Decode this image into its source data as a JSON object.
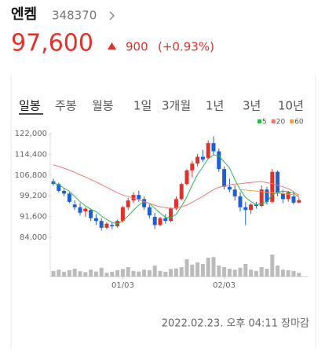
{
  "header": {
    "name": "엔켐",
    "code": "348370",
    "price": "97,600",
    "change": "900",
    "change_pct": "(+0.93%)"
  },
  "tabs": [
    "일봉",
    "주봉",
    "월봉",
    "1일",
    "3개월",
    "1년",
    "3년",
    "10년"
  ],
  "footer": "2022.02.23. 오후 04:11 장마감",
  "chart_data": {
    "type": "candlestick",
    "categories": [
      null,
      null,
      null,
      null,
      null,
      null,
      null,
      null,
      null,
      null,
      null,
      null,
      null,
      "01/03",
      null,
      null,
      null,
      null,
      null,
      null,
      null,
      null,
      null,
      null,
      null,
      null,
      null,
      null,
      null,
      null,
      null,
      null,
      "02/03",
      null,
      null,
      null,
      null,
      null,
      null,
      null,
      null,
      null,
      null,
      null,
      null,
      null,
      null
    ],
    "open": [
      104500,
      103500,
      101000,
      100000,
      96000,
      95000,
      93500,
      94000,
      91000,
      90000,
      87500,
      88500,
      88000,
      90000,
      95000,
      97500,
      99500,
      98000,
      95000,
      91500,
      88500,
      91000,
      90000,
      94500,
      98000,
      103500,
      108500,
      111000,
      113500,
      113000,
      118500,
      115500,
      109000,
      102500,
      101500,
      99000,
      95000,
      94000,
      96000,
      95500,
      101500,
      97000,
      108000,
      100000,
      98000,
      99000,
      96700
    ],
    "high": [
      105500,
      104000,
      102000,
      100500,
      97500,
      96500,
      95000,
      94500,
      92500,
      91000,
      89500,
      89500,
      90500,
      95500,
      98500,
      100500,
      101000,
      99000,
      96000,
      93000,
      91500,
      92500,
      95000,
      99000,
      104000,
      109000,
      112000,
      114500,
      116000,
      119500,
      121000,
      116500,
      110000,
      105500,
      103000,
      100500,
      97000,
      96500,
      97000,
      103000,
      102500,
      109000,
      108500,
      101500,
      101000,
      100500,
      98500
    ],
    "low": [
      103000,
      100500,
      99000,
      96500,
      94000,
      92000,
      91500,
      90000,
      88500,
      86500,
      87000,
      87000,
      87500,
      89500,
      94000,
      96500,
      97000,
      94000,
      91000,
      87000,
      88000,
      89000,
      89500,
      94000,
      97500,
      103000,
      106000,
      110000,
      111500,
      112500,
      114000,
      108000,
      101500,
      100500,
      97500,
      93500,
      88500,
      92500,
      94500,
      95000,
      96000,
      96500,
      99000,
      96500,
      97000,
      96000,
      96500
    ],
    "close": [
      103500,
      101000,
      100000,
      97000,
      95000,
      93000,
      94500,
      91000,
      90000,
      87500,
      89000,
      88000,
      90000,
      95000,
      97500,
      99500,
      98000,
      95000,
      92000,
      88500,
      91000,
      90000,
      94500,
      98000,
      103500,
      108500,
      111000,
      113500,
      112500,
      118500,
      115500,
      109000,
      102500,
      101500,
      99000,
      95000,
      94000,
      96000,
      95500,
      101500,
      97000,
      108000,
      100000,
      98000,
      100500,
      96700,
      97600
    ],
    "up_color": "#e0322c",
    "down_color": "#1f5fd1",
    "series": [
      {
        "name": "5",
        "color": "#2db84d",
        "values": [
          104000,
          103200,
          102000,
          100800,
          99000,
          97000,
          95500,
          94300,
          93400,
          91800,
          90500,
          89500,
          88900,
          89900,
          91800,
          93900,
          95800,
          97000,
          96400,
          94600,
          92900,
          91300,
          91200,
          92400,
          95400,
          98800,
          103100,
          107000,
          109800,
          112800,
          114200,
          113800,
          111600,
          109400,
          105100,
          101400,
          98600,
          97100,
          95900,
          96400,
          96800,
          99600,
          100400,
          100900,
          100700,
          100200,
          98600
        ]
      },
      {
        "name": "20",
        "color": "#f07878",
        "values": [
          110500,
          110000,
          109300,
          108600,
          107800,
          106900,
          106100,
          105200,
          104300,
          103300,
          102300,
          101300,
          100300,
          99500,
          98900,
          98300,
          97800,
          97100,
          96400,
          95700,
          95200,
          94900,
          94600,
          94700,
          95100,
          95800,
          96800,
          97900,
          99000,
          100300,
          101500,
          102300,
          102700,
          103200,
          103500,
          103600,
          103900,
          104100,
          104300,
          104400,
          104000,
          103700,
          103100,
          102500,
          101800,
          100700,
          99500
        ]
      },
      {
        "name": "60",
        "color": "#f5a03c",
        "values": [
          null,
          null,
          null,
          null,
          null,
          null,
          null,
          null,
          null,
          null,
          null,
          null,
          null,
          null,
          null,
          null,
          null,
          null,
          null,
          null,
          null,
          null,
          null,
          null,
          null,
          null,
          null,
          null,
          null,
          null,
          null,
          null,
          null,
          null,
          null,
          101500,
          101300,
          101100,
          100900,
          100700,
          100500,
          100400,
          100200,
          100000,
          99800,
          99600,
          99400
        ]
      }
    ],
    "volume": [
      18,
      22,
      15,
      20,
      25,
      17,
      14,
      22,
      16,
      28,
      12,
      15,
      20,
      24,
      30,
      18,
      16,
      22,
      20,
      35,
      18,
      15,
      24,
      26,
      30,
      55,
      38,
      45,
      40,
      60,
      62,
      35,
      30,
      25,
      22,
      28,
      40,
      22,
      18,
      30,
      25,
      70,
      35,
      22,
      20,
      18,
      12
    ],
    "volume_ylim": [
      0,
      100
    ],
    "ylim": [
      84000,
      122000
    ],
    "yticks": [
      {
        "value": 84000,
        "label": "84,000"
      },
      {
        "value": 91600,
        "label": "91,600"
      },
      {
        "value": 99200,
        "label": "99,200"
      },
      {
        "value": 106800,
        "label": "106,800"
      },
      {
        "value": 114400,
        "label": "114,400"
      },
      {
        "value": 122000,
        "label": "122,000"
      }
    ],
    "grid": false
  }
}
